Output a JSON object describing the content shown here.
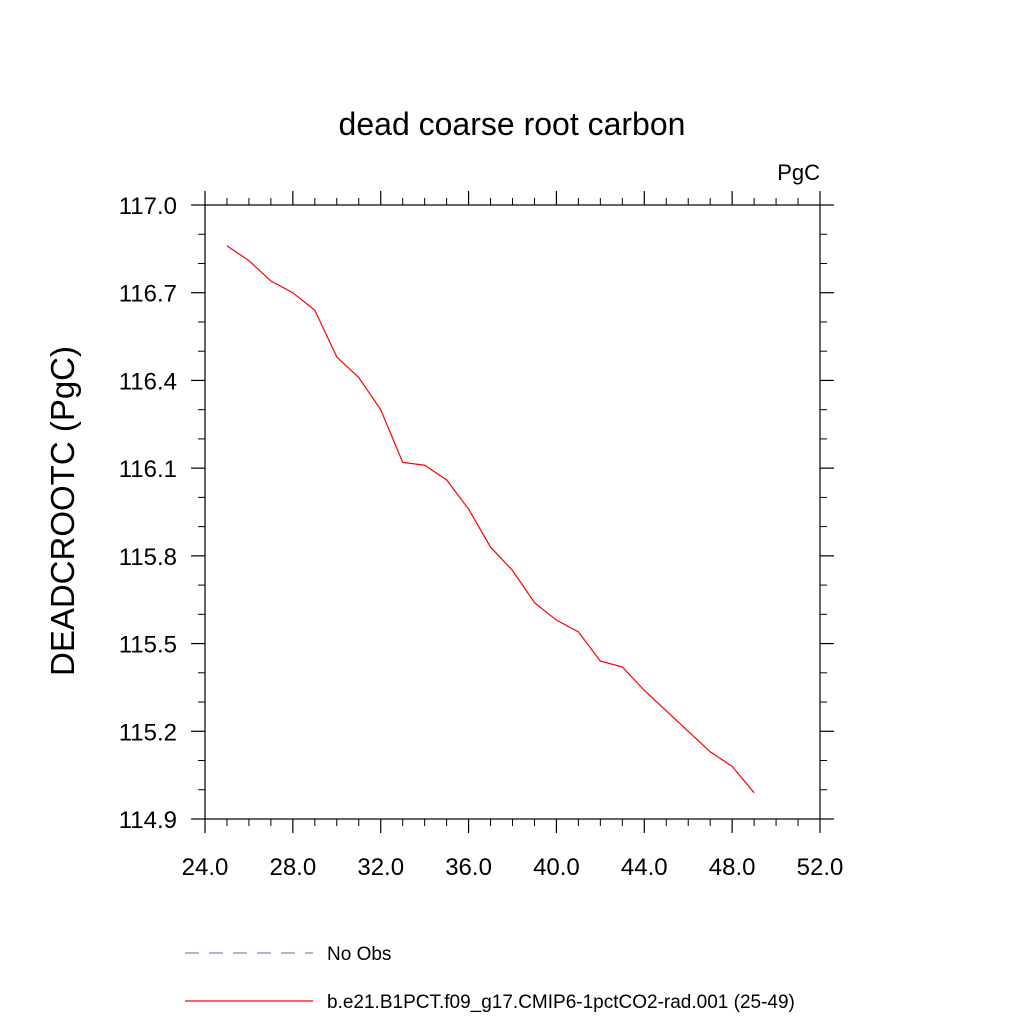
{
  "chart_data": {
    "type": "line",
    "title": "dead coarse root carbon",
    "units": "PgC",
    "ylabel": "DEADCROOTC  (PgC)",
    "xlabel": "",
    "xlim": [
      24,
      52
    ],
    "ylim": [
      114.9,
      117.0
    ],
    "x_ticks": [
      24,
      28,
      32,
      36,
      40,
      44,
      48,
      52
    ],
    "x_tick_labels": [
      "24.0",
      "28.0",
      "32.0",
      "36.0",
      "40.0",
      "44.0",
      "48.0",
      "52.0"
    ],
    "y_ticks": [
      114.9,
      115.2,
      115.5,
      115.8,
      116.1,
      116.4,
      116.7,
      117.0
    ],
    "y_tick_labels": [
      "114.9",
      "115.2",
      "115.5",
      "115.8",
      "116.1",
      "116.4",
      "116.7",
      "117.0"
    ],
    "grid": false,
    "legend_position": "bottom",
    "series": [
      {
        "name": "b.e21.B1PCT.f09_g17.CMIP6-1pctCO2-rad.001 (25-49)",
        "color": "#ff0000",
        "style": "solid",
        "x": [
          25,
          26,
          27,
          28,
          29,
          30,
          31,
          32,
          33,
          34,
          35,
          36,
          37,
          38,
          39,
          40,
          41,
          42,
          43,
          44,
          45,
          46,
          47,
          48,
          49
        ],
        "values": [
          116.86,
          116.81,
          116.74,
          116.7,
          116.64,
          116.48,
          116.41,
          116.3,
          116.12,
          116.11,
          116.06,
          115.96,
          115.83,
          115.75,
          115.64,
          115.58,
          115.54,
          115.44,
          115.42,
          115.34,
          115.27,
          115.2,
          115.13,
          115.08,
          114.99
        ]
      },
      {
        "name": "No Obs",
        "color": "#8080c0",
        "style": "dashed",
        "x": [],
        "values": []
      }
    ]
  }
}
